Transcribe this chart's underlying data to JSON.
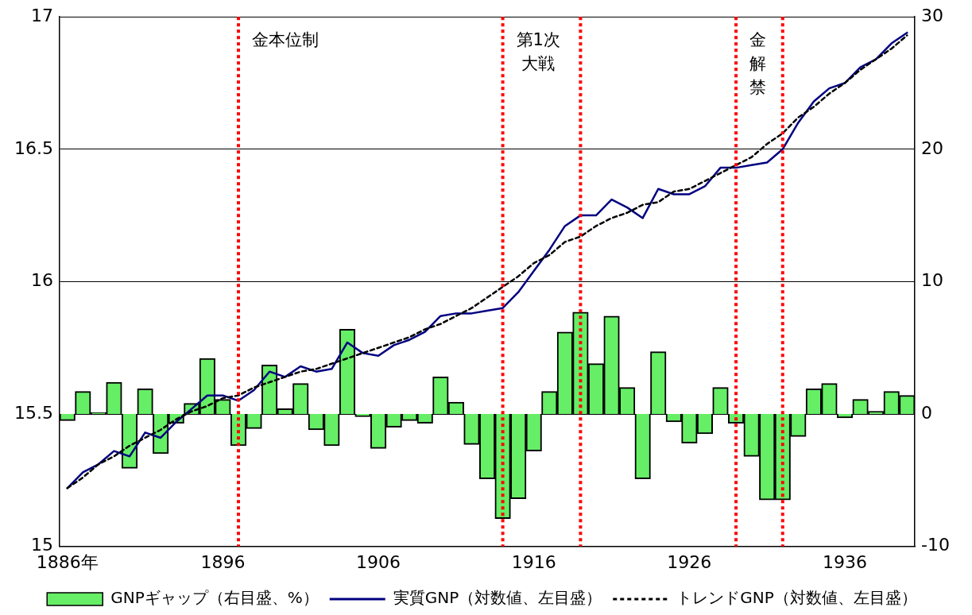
{
  "chart_data": {
    "type": "bar",
    "x": [
      1886,
      1887,
      1888,
      1889,
      1890,
      1891,
      1892,
      1893,
      1894,
      1895,
      1896,
      1897,
      1898,
      1899,
      1900,
      1901,
      1902,
      1903,
      1904,
      1905,
      1906,
      1907,
      1908,
      1909,
      1910,
      1911,
      1912,
      1913,
      1914,
      1915,
      1916,
      1917,
      1918,
      1919,
      1920,
      1921,
      1922,
      1923,
      1924,
      1925,
      1926,
      1927,
      1928,
      1929,
      1930,
      1931,
      1932,
      1933,
      1934,
      1935,
      1936,
      1937,
      1938,
      1939,
      1940
    ],
    "series": [
      {
        "name": "GNPギャップ（右目盛、%）",
        "axis": "y2",
        "color": "#66ee66",
        "values": [
          -0.5,
          1.7,
          0.1,
          2.4,
          -4.1,
          1.9,
          -3.0,
          -0.7,
          0.8,
          4.2,
          1.1,
          -2.4,
          -1.1,
          3.7,
          0.4,
          2.3,
          -1.2,
          -2.4,
          6.4,
          -0.2,
          -2.6,
          -1.0,
          -0.5,
          -0.7,
          2.8,
          0.9,
          -2.3,
          -4.9,
          -7.9,
          -6.4,
          -2.8,
          1.7,
          6.2,
          7.7,
          3.8,
          7.4,
          2.0,
          -4.9,
          4.7,
          -0.6,
          -2.2,
          -1.5,
          2.0,
          -0.7,
          -3.2,
          -6.5,
          -6.5,
          -1.7,
          1.9,
          2.3,
          -0.3,
          1.1,
          0.2,
          1.7,
          1.4
        ]
      },
      {
        "name": "実質GNP（対数値、左目盛）",
        "type": "line",
        "color": "#000080",
        "line_style": "solid",
        "values": [
          15.22,
          15.28,
          15.31,
          15.36,
          15.34,
          15.43,
          15.41,
          15.47,
          15.52,
          15.57,
          15.57,
          15.55,
          15.59,
          15.66,
          15.64,
          15.68,
          15.66,
          15.67,
          15.77,
          15.73,
          15.72,
          15.76,
          15.78,
          15.81,
          15.87,
          15.88,
          15.88,
          15.89,
          15.9,
          15.96,
          16.04,
          16.12,
          16.21,
          16.25,
          16.25,
          16.31,
          16.28,
          16.24,
          16.35,
          16.33,
          16.33,
          16.36,
          16.43,
          16.43,
          16.44,
          16.45,
          16.5,
          16.6,
          16.68,
          16.73,
          16.75,
          16.81,
          16.84,
          16.9,
          16.94
        ]
      },
      {
        "name": "トレンドGNP（対数値、左目盛）",
        "type": "line",
        "color": "#000000",
        "line_style": "dashed",
        "values": [
          15.22,
          15.26,
          15.31,
          15.34,
          15.38,
          15.41,
          15.44,
          15.48,
          15.51,
          15.53,
          15.56,
          15.57,
          15.6,
          15.62,
          15.64,
          15.66,
          15.67,
          15.69,
          15.71,
          15.73,
          15.75,
          15.77,
          15.79,
          15.82,
          15.84,
          15.87,
          15.9,
          15.94,
          15.98,
          16.02,
          16.07,
          16.1,
          16.15,
          16.17,
          16.21,
          16.24,
          16.26,
          16.29,
          16.3,
          16.34,
          16.35,
          16.38,
          16.41,
          16.44,
          16.47,
          16.52,
          16.56,
          16.62,
          16.66,
          16.71,
          16.75,
          16.8,
          16.84,
          16.88,
          16.93
        ]
      }
    ],
    "xlim": [
      1885.5,
      1940.5
    ],
    "xticks": [
      {
        "value": 1886,
        "label": "1886年"
      },
      1896,
      1906,
      1916,
      1926,
      1936
    ],
    "ylim": [
      15,
      17
    ],
    "yticks": [
      15,
      15.5,
      16,
      16.5,
      17
    ],
    "y2lim": [
      -10,
      30
    ],
    "y2ticks": [
      -10,
      0,
      10,
      20,
      30
    ],
    "grid": "y",
    "legend": "bottom",
    "marker": "none",
    "ref_lines": [
      {
        "axis": "x",
        "value": 1897,
        "color": "#ff0000",
        "line_style": "dotted",
        "label": "金本位制"
      },
      {
        "axis": "x",
        "value": 1914,
        "color": "#ff0000",
        "line_style": "dotted",
        "label": "第1次大戦"
      },
      {
        "axis": "x",
        "value": 1919,
        "color": "#ff0000",
        "line_style": "dotted"
      },
      {
        "axis": "x",
        "value": 1929,
        "color": "#ff0000",
        "line_style": "dotted",
        "label": "金解禁"
      },
      {
        "axis": "x",
        "value": 1932,
        "color": "#ff0000",
        "line_style": "dotted"
      }
    ]
  }
}
